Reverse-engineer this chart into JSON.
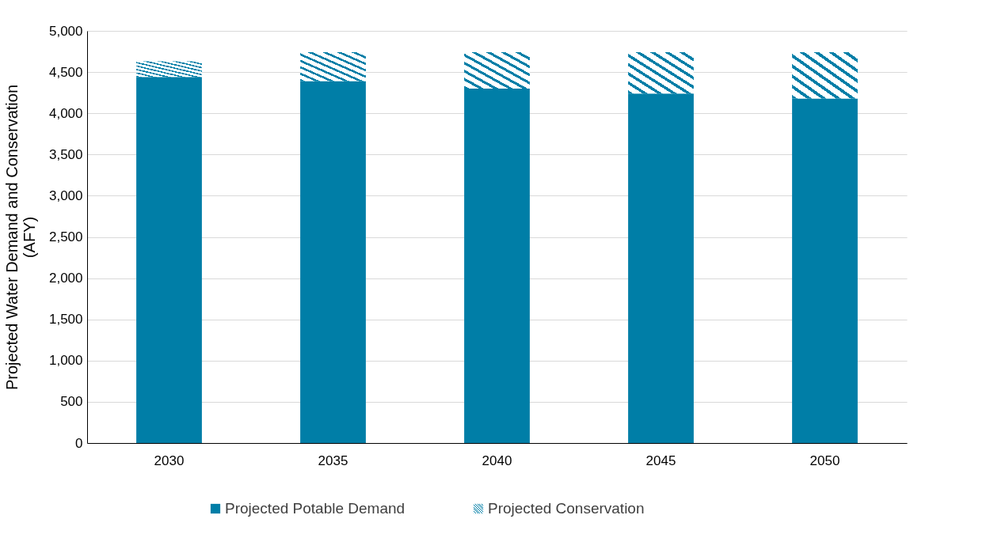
{
  "chart_data": {
    "type": "bar",
    "ylabel": "Projected Water Demand and Conservation (AFY)",
    "categories": [
      "2030",
      "2035",
      "2040",
      "2045",
      "2050"
    ],
    "stacked": true,
    "series": [
      {
        "name": "Projected Potable Demand",
        "color": "#007ea7",
        "values": [
          4440,
          4390,
          4300,
          4240,
          4180
        ]
      },
      {
        "name": "Projected Conservation",
        "color": "#007ea7",
        "values": [
          190,
          350,
          440,
          500,
          560
        ]
      }
    ],
    "ylim": [
      0,
      5000
    ],
    "yticks": [
      0,
      500,
      {
        "value": 1000,
        "label": "1,000"
      },
      {
        "value": 1500,
        "label": "1,500"
      },
      {
        "value": 2000,
        "label": "2,000"
      },
      {
        "value": 2500,
        "label": "2,500"
      },
      {
        "value": 3000,
        "label": "3,000"
      },
      {
        "value": 3500,
        "label": "3,500"
      },
      {
        "value": 4000,
        "label": "4,000"
      },
      {
        "value": 4500,
        "label": "4,500"
      },
      {
        "value": 5000,
        "label": "5,000"
      }
    ],
    "grid": "y",
    "legend": "bottom"
  }
}
